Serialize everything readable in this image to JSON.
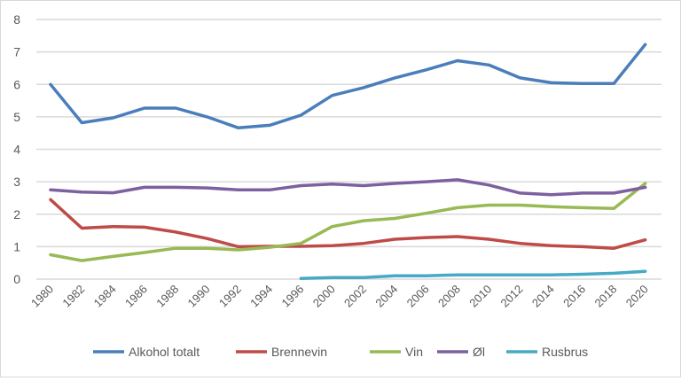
{
  "chart_data": {
    "type": "line",
    "title": "",
    "xlabel": "",
    "ylabel": "",
    "ylim": [
      0,
      8
    ],
    "yticks": [
      "0",
      "1",
      "2",
      "3",
      "4",
      "5",
      "6",
      "7",
      "8"
    ],
    "grid": true,
    "legend_position": "bottom",
    "categories": [
      "1980",
      "1982",
      "1984",
      "1986",
      "1988",
      "1990",
      "1992",
      "1994",
      "1996",
      "2000",
      "2002",
      "2004",
      "2006",
      "2008",
      "2010",
      "2012",
      "2014",
      "2016",
      "2018",
      "2020"
    ],
    "series": [
      {
        "name": "Alkohol totalt",
        "color": "#4a7ebb",
        "values": [
          6.0,
          4.82,
          4.97,
          5.27,
          5.27,
          5.0,
          4.66,
          4.74,
          5.05,
          5.66,
          5.9,
          6.2,
          6.45,
          6.73,
          6.6,
          6.2,
          6.05,
          6.03,
          6.03,
          7.23
        ]
      },
      {
        "name": "Brennevin",
        "color": "#be4b48",
        "values": [
          2.45,
          1.57,
          1.62,
          1.6,
          1.45,
          1.25,
          1.0,
          1.01,
          1.01,
          1.03,
          1.1,
          1.23,
          1.28,
          1.31,
          1.23,
          1.1,
          1.03,
          1.0,
          0.95,
          1.21
        ]
      },
      {
        "name": "Vin",
        "color": "#98b954",
        "values": [
          0.75,
          0.57,
          0.7,
          0.82,
          0.95,
          0.95,
          0.9,
          0.98,
          1.1,
          1.62,
          1.8,
          1.87,
          2.03,
          2.2,
          2.28,
          2.28,
          2.23,
          2.2,
          2.18,
          2.95
        ]
      },
      {
        "name": "Øl",
        "color": "#7d60a0",
        "values": [
          2.75,
          2.68,
          2.66,
          2.83,
          2.83,
          2.81,
          2.75,
          2.75,
          2.88,
          2.93,
          2.88,
          2.95,
          3.0,
          3.06,
          2.9,
          2.65,
          2.6,
          2.65,
          2.65,
          2.83
        ]
      },
      {
        "name": "Rusbrus",
        "color": "#46aac5",
        "values": [
          null,
          null,
          null,
          null,
          null,
          null,
          null,
          null,
          0.02,
          0.05,
          0.05,
          0.1,
          0.1,
          0.13,
          0.13,
          0.13,
          0.13,
          0.15,
          0.18,
          0.24
        ]
      }
    ]
  }
}
